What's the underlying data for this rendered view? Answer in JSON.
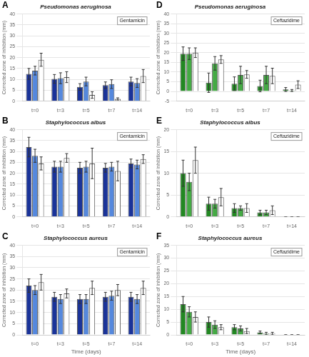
{
  "chart_data": [
    {
      "type": "bar",
      "title": "Pseudomonas aeruginosa",
      "annotations": [
        "A",
        "Gentamicin"
      ],
      "ylabel": "Corrected zone of inhibition (mm)",
      "categories": [
        "t=0",
        "t=3",
        "t=5",
        "t=7",
        "t=14"
      ],
      "series": [
        {
          "color": "#1a3399",
          "values": [
            12.5,
            10.2,
            6.5,
            7.3,
            9.0
          ],
          "errors": [
            2.5,
            2.0,
            1.5,
            1.5,
            2.0
          ]
        },
        {
          "color": "#5588dd",
          "values": [
            14.0,
            10.5,
            9.0,
            7.8,
            8.3
          ],
          "errors": [
            2.0,
            2.5,
            2.0,
            2.0,
            2.0
          ]
        },
        {
          "color": "#ffffff",
          "values": [
            19.0,
            11.0,
            2.8,
            1.0,
            11.5
          ],
          "errors": [
            3.0,
            2.5,
            1.5,
            0.5,
            3.0
          ]
        }
      ],
      "ylim": [
        0,
        40
      ],
      "yticks": [
        0,
        5,
        10,
        15,
        20,
        25,
        30,
        35,
        40
      ],
      "grid": true
    },
    {
      "type": "bar",
      "title": "Staphylococcus albus",
      "annotations": [
        "B",
        "Gentamicin"
      ],
      "ylabel": "Corrected zone of inhibition (mm)",
      "categories": [
        "t=0",
        "t=3",
        "t=5",
        "t=7",
        "t=14"
      ],
      "series": [
        {
          "color": "#1a3399",
          "values": [
            32.0,
            23.0,
            22.5,
            22.5,
            24.5
          ],
          "errors": [
            4.5,
            2.5,
            2.5,
            2.0,
            2.0
          ]
        },
        {
          "color": "#5588dd",
          "values": [
            28.0,
            23.0,
            23.0,
            23.0,
            24.0
          ],
          "errors": [
            3.0,
            2.5,
            2.5,
            2.0,
            2.0
          ]
        },
        {
          "color": "#ffffff",
          "values": [
            24.5,
            27.0,
            24.5,
            21.0,
            26.5
          ],
          "errors": [
            3.0,
            2.0,
            7.0,
            4.5,
            2.0
          ]
        }
      ],
      "ylim": [
        0,
        40
      ],
      "yticks": [
        0,
        5,
        10,
        15,
        20,
        25,
        30,
        35,
        40
      ],
      "grid": true
    },
    {
      "type": "bar",
      "title": "Staphylococcus aureus",
      "annotations": [
        "C",
        "Gentamicin"
      ],
      "ylabel": "Corrected zone of inhibition (mm)",
      "xlabel": "Time (days)",
      "categories": [
        "t=0",
        "t=3",
        "t=5",
        "t=7",
        "t=14"
      ],
      "series": [
        {
          "color": "#1a3399",
          "values": [
            22.0,
            17.0,
            16.0,
            17.0,
            17.0
          ],
          "errors": [
            3.0,
            2.0,
            2.0,
            2.0,
            2.0
          ]
        },
        {
          "color": "#5588dd",
          "values": [
            20.0,
            16.0,
            16.0,
            17.5,
            16.0
          ],
          "errors": [
            2.0,
            2.0,
            2.0,
            2.0,
            2.0
          ]
        },
        {
          "color": "#ffffff",
          "values": [
            23.5,
            18.5,
            21.0,
            20.0,
            21.0
          ],
          "errors": [
            3.5,
            2.0,
            3.0,
            2.5,
            3.0
          ]
        }
      ],
      "ylim": [
        0,
        40
      ],
      "yticks": [
        0,
        5,
        10,
        15,
        20,
        25,
        30,
        35,
        40
      ],
      "grid": true
    },
    {
      "type": "bar",
      "title": "Pseudomonas aeruginosa",
      "annotations": [
        "D",
        "Ceftazidime"
      ],
      "ylabel": "Corrected zone of inhibition (mm)",
      "categories": [
        "t=0",
        "t=3",
        "t=5",
        "t=7",
        "t=14"
      ],
      "series": [
        {
          "color": "#228822",
          "values": [
            19.5,
            4.5,
            4.0,
            2.8,
            1.0
          ],
          "errors": [
            3.5,
            5.0,
            3.5,
            3.0,
            1.0
          ]
        },
        {
          "color": "#44aa44",
          "values": [
            19.5,
            14.5,
            8.5,
            8.5,
            0.5
          ],
          "errors": [
            3.0,
            3.5,
            4.5,
            4.5,
            0.5
          ]
        },
        {
          "color": "#ffffff",
          "values": [
            20.0,
            16.5,
            8.8,
            8.0,
            3.5
          ],
          "errors": [
            2.5,
            2.0,
            2.0,
            4.0,
            2.0
          ]
        }
      ],
      "ylim": [
        -5,
        40
      ],
      "yticks": [
        -5,
        0,
        5,
        10,
        15,
        20,
        25,
        30,
        35,
        40
      ],
      "grid": true
    },
    {
      "type": "bar",
      "title": "Staphylococcus albus",
      "annotations": [
        "E",
        "Ceftazidime"
      ],
      "ylabel": "Corrected zone of inhibition (mm)",
      "categories": [
        "t=0",
        "t=3",
        "t=5",
        "t=7",
        "t=14"
      ],
      "series": [
        {
          "color": "#228822",
          "values": [
            10.0,
            3.0,
            2.0,
            1.0,
            0.0
          ],
          "errors": [
            3.0,
            1.5,
            1.0,
            0.5,
            0.0
          ]
        },
        {
          "color": "#44aa44",
          "values": [
            8.0,
            3.0,
            2.0,
            1.0,
            0.0
          ],
          "errors": [
            2.0,
            1.0,
            0.5,
            0.5,
            0.0
          ]
        },
        {
          "color": "#ffffff",
          "values": [
            13.0,
            4.5,
            2.0,
            1.5,
            0.0
          ],
          "errors": [
            3.0,
            2.0,
            1.0,
            1.0,
            0.0
          ]
        }
      ],
      "ylim": [
        0,
        20
      ],
      "yticks": [
        0,
        5,
        10,
        15,
        20
      ],
      "grid": true
    },
    {
      "type": "bar",
      "title": "Staphylococcus aureus",
      "annotations": [
        "F",
        "Ceftazidime"
      ],
      "ylabel": "Corrected zone of inhibition (mm)",
      "xlabel": "Time (days)",
      "categories": [
        "t=0",
        "t=3",
        "t=5",
        "t=7",
        "t=14"
      ],
      "series": [
        {
          "color": "#228822",
          "values": [
            12.0,
            5.0,
            3.0,
            1.0,
            0.0
          ],
          "errors": [
            3.0,
            2.0,
            1.0,
            0.5,
            0.0
          ]
        },
        {
          "color": "#44aa44",
          "values": [
            9.0,
            4.0,
            2.5,
            0.5,
            0.0
          ],
          "errors": [
            2.0,
            1.5,
            1.0,
            0.5,
            0.0
          ]
        },
        {
          "color": "#ffffff",
          "values": [
            7.0,
            3.0,
            1.5,
            0.5,
            0.0
          ],
          "errors": [
            2.0,
            1.0,
            1.0,
            0.5,
            0.0
          ]
        }
      ],
      "ylim": [
        0,
        35
      ],
      "yticks": [
        0,
        5,
        10,
        15,
        20,
        25,
        30,
        35
      ],
      "grid": true
    }
  ]
}
